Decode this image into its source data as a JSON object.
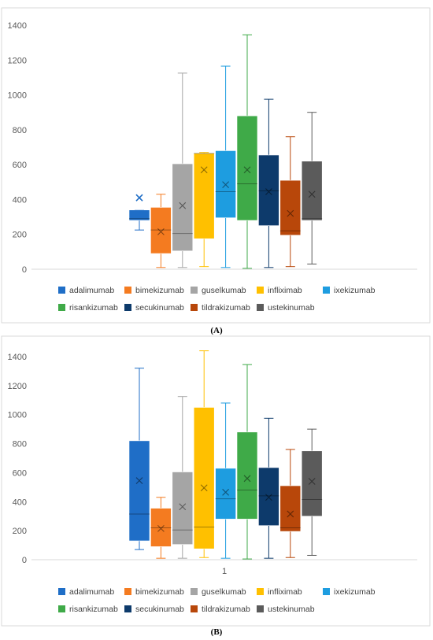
{
  "charts": [
    {
      "panel_label": "(A)",
      "chart_data": {
        "type": "box",
        "ylim": [
          0,
          1400
        ],
        "yticks": [
          "0",
          "200",
          "400",
          "600",
          "800",
          "1000",
          "1200",
          "1400"
        ],
        "xticks": [],
        "series": [
          {
            "name": "adalimumab",
            "min": 225,
            "q1": 280,
            "median": 290,
            "q3": 340,
            "max": 340,
            "mean": 410,
            "outliers": [
              410
            ],
            "color": "#1F6EC7"
          },
          {
            "name": "bimekizumab",
            "min": 10,
            "q1": 90,
            "median": 225,
            "q3": 355,
            "max": 430,
            "mean": 215,
            "outliers": [],
            "color": "#F47B20"
          },
          {
            "name": "guselkumab",
            "min": 10,
            "q1": 105,
            "median": 205,
            "q3": 605,
            "max": 1125,
            "mean": 365,
            "outliers": [],
            "color": "#A5A5A5"
          },
          {
            "name": "infliximab",
            "min": 15,
            "q1": 175,
            "median": 665,
            "q3": 665,
            "max": 670,
            "mean": 570,
            "outliers": [],
            "color": "#FFC000"
          },
          {
            "name": "ixekizumab",
            "min": 10,
            "q1": 295,
            "median": 445,
            "q3": 680,
            "max": 1165,
            "mean": 485,
            "outliers": [],
            "color": "#1E9DE0"
          },
          {
            "name": "risankizumab",
            "min": 5,
            "q1": 280,
            "median": 490,
            "q3": 880,
            "max": 1345,
            "mean": 570,
            "outliers": [],
            "color": "#3FAA48"
          },
          {
            "name": "secukinumab",
            "min": 10,
            "q1": 250,
            "median": 450,
            "q3": 655,
            "max": 975,
            "mean": 445,
            "outliers": [],
            "color": "#0D3A6B"
          },
          {
            "name": "tildrakizumab",
            "min": 15,
            "q1": 195,
            "median": 220,
            "q3": 510,
            "max": 760,
            "mean": 320,
            "outliers": [],
            "color": "#B8470A"
          },
          {
            "name": "ustekinumab",
            "min": 30,
            "q1": 280,
            "median": 290,
            "q3": 620,
            "max": 900,
            "mean": 430,
            "outliers": [],
            "color": "#5B5B5B"
          }
        ],
        "legend": [
          "adalimumab",
          "bimekizumab",
          "guselkumab",
          "infliximab",
          "ixekizumab",
          "risankizumab",
          "secukinumab",
          "tildrakizumab",
          "ustekinumab"
        ]
      }
    },
    {
      "panel_label": "(B)",
      "chart_data": {
        "type": "box",
        "ylim": [
          0,
          1400
        ],
        "yticks": [
          "0",
          "200",
          "400",
          "600",
          "800",
          "1000",
          "1200",
          "1400"
        ],
        "xticks": [
          "1"
        ],
        "series": [
          {
            "name": "adalimumab",
            "min": 70,
            "q1": 130,
            "median": 315,
            "q3": 820,
            "max": 1320,
            "mean": 545,
            "outliers": [],
            "color": "#1F6EC7"
          },
          {
            "name": "bimekizumab",
            "min": 10,
            "q1": 90,
            "median": 220,
            "q3": 355,
            "max": 430,
            "mean": 215,
            "outliers": [],
            "color": "#F47B20"
          },
          {
            "name": "guselkumab",
            "min": 10,
            "q1": 105,
            "median": 205,
            "q3": 605,
            "max": 1125,
            "mean": 365,
            "outliers": [],
            "color": "#A5A5A5"
          },
          {
            "name": "infliximab",
            "min": 15,
            "q1": 75,
            "median": 225,
            "q3": 1050,
            "max": 1440,
            "mean": 495,
            "outliers": [],
            "color": "#FFC000"
          },
          {
            "name": "ixekizumab",
            "min": 10,
            "q1": 280,
            "median": 420,
            "q3": 630,
            "max": 1080,
            "mean": 465,
            "outliers": [],
            "color": "#1E9DE0"
          },
          {
            "name": "risankizumab",
            "min": 5,
            "q1": 280,
            "median": 480,
            "q3": 880,
            "max": 1345,
            "mean": 560,
            "outliers": [],
            "color": "#3FAA48"
          },
          {
            "name": "secukinumab",
            "min": 10,
            "q1": 235,
            "median": 440,
            "q3": 635,
            "max": 975,
            "mean": 430,
            "outliers": [],
            "color": "#0D3A6B"
          },
          {
            "name": "tildrakizumab",
            "min": 15,
            "q1": 195,
            "median": 220,
            "q3": 510,
            "max": 760,
            "mean": 315,
            "outliers": [],
            "color": "#B8470A"
          },
          {
            "name": "ustekinumab",
            "min": 30,
            "q1": 300,
            "median": 415,
            "q3": 750,
            "max": 900,
            "mean": 540,
            "outliers": [],
            "color": "#5B5B5B"
          }
        ],
        "legend": [
          "adalimumab",
          "bimekizumab",
          "guselkumab",
          "infliximab",
          "ixekizumab",
          "risankizumab",
          "secukinumab",
          "tildrakizumab",
          "ustekinumab"
        ]
      }
    }
  ]
}
